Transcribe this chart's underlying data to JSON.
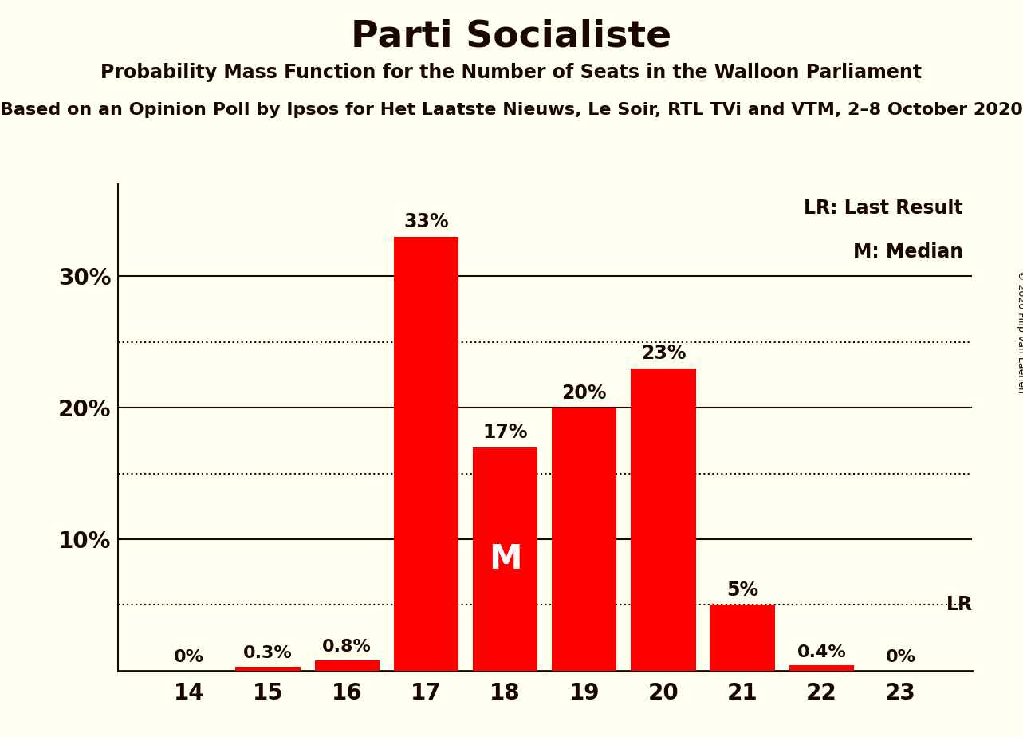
{
  "title": "Parti Socialiste",
  "subtitle1": "Probability Mass Function for the Number of Seats in the Walloon Parliament",
  "subtitle2": "Based on an Opinion Poll by Ipsos for Het Laatste Nieuws, Le Soir, RTL TVi and VTM, 2–8 October 2020",
  "copyright": "© 2020 Filip van Laenen",
  "categories": [
    14,
    15,
    16,
    17,
    18,
    19,
    20,
    21,
    22,
    23
  ],
  "values": [
    0.0,
    0.3,
    0.8,
    33.0,
    17.0,
    20.0,
    23.0,
    5.0,
    0.4,
    0.0
  ],
  "labels": [
    "0%",
    "0.3%",
    "0.8%",
    "33%",
    "17%",
    "20%",
    "23%",
    "5%",
    "0.4%",
    "0%"
  ],
  "bar_color": "#ff0000",
  "background_color": "#fffff0",
  "text_color": "#1a0800",
  "median_bar_idx": 4,
  "median_label": "M",
  "lr_value": 5.0,
  "lr_label": "LR",
  "lr_label2": "LR: Last Result",
  "median_label2": "M: Median",
  "ylim": [
    0,
    37
  ],
  "yticks": [
    10,
    20,
    30
  ],
  "ytick_labels": [
    "10%",
    "20%",
    "30%"
  ],
  "dotted_lines": [
    5,
    15,
    25
  ],
  "solid_lines": [
    10,
    20,
    30
  ],
  "title_fontsize": 34,
  "subtitle1_fontsize": 17,
  "subtitle2_fontsize": 16,
  "bar_label_fontsize": 17,
  "axis_label_fontsize": 20,
  "legend_fontsize": 17
}
